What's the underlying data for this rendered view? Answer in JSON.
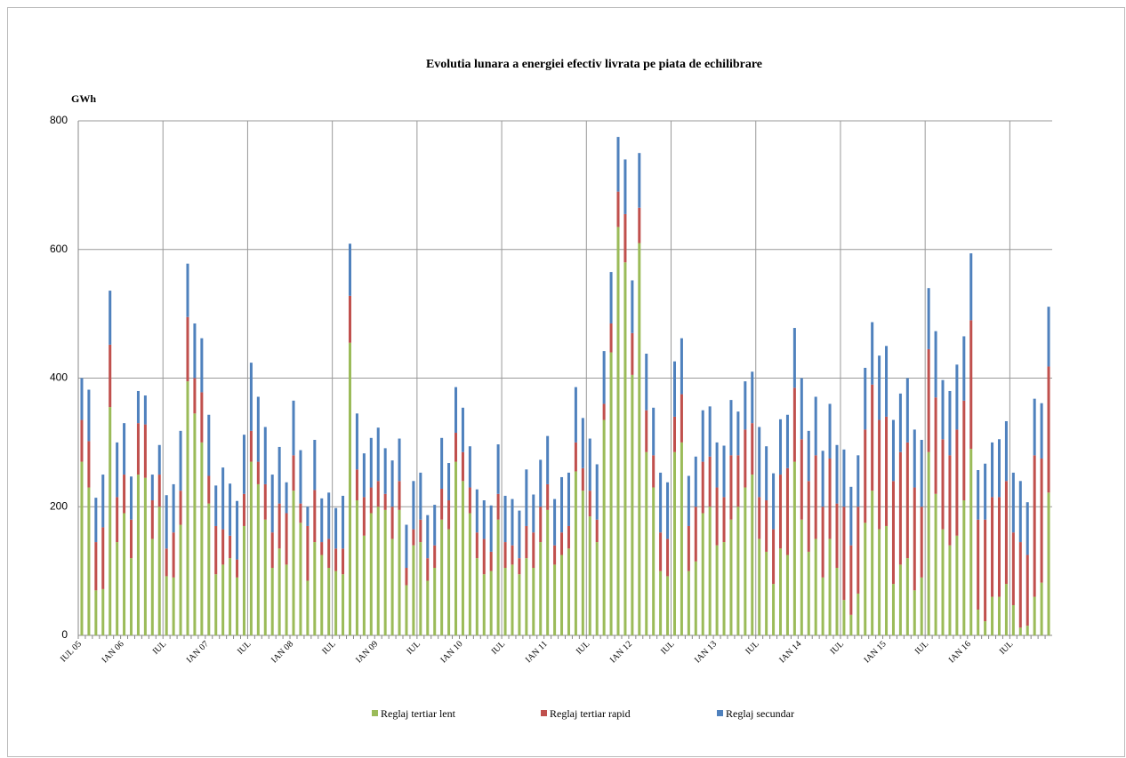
{
  "chart_data": {
    "type": "stacked_bar",
    "title": "Evolutia  lunara  a energiei efectiv livrata pe piata de echilibrare",
    "y_label": "GWh",
    "categories": [
      "IUL 05",
      null,
      null,
      null,
      null,
      null,
      "IAN 06",
      null,
      null,
      null,
      null,
      null,
      "IUL",
      null,
      null,
      null,
      null,
      null,
      "IAN 07",
      null,
      null,
      null,
      null,
      null,
      "IUL",
      null,
      null,
      null,
      null,
      null,
      "IAN 08",
      null,
      null,
      null,
      null,
      null,
      "IUL",
      null,
      null,
      null,
      null,
      null,
      "IAN 09",
      null,
      null,
      null,
      null,
      null,
      "IUL",
      null,
      null,
      null,
      null,
      null,
      "IAN 10",
      null,
      null,
      null,
      null,
      null,
      "IUL",
      null,
      null,
      null,
      null,
      null,
      "IAN 11",
      null,
      null,
      null,
      null,
      null,
      "IUL",
      null,
      null,
      null,
      null,
      null,
      "IAN 12",
      null,
      null,
      null,
      null,
      null,
      "IUL",
      null,
      null,
      null,
      null,
      null,
      "IAN 13",
      null,
      null,
      null,
      null,
      null,
      "IUL",
      null,
      null,
      null,
      null,
      null,
      "IAN 14",
      null,
      null,
      null,
      null,
      null,
      "IUL",
      null,
      null,
      null,
      null,
      null,
      "IAN 15",
      null,
      null,
      null,
      null,
      null,
      "IUL",
      null,
      null,
      null,
      null,
      null,
      "IAN 16",
      null,
      null,
      null,
      null,
      null,
      "IUL",
      null,
      null,
      null,
      null,
      null
    ],
    "series": [
      {
        "name": "Reglaj tertiar lent",
        "color": "#9bbb59",
        "values": [
          270,
          230,
          70,
          72,
          355,
          145,
          190,
          120,
          250,
          245,
          150,
          200,
          92,
          90,
          172,
          395,
          345,
          300,
          205,
          95,
          110,
          120,
          90,
          170,
          270,
          235,
          180,
          105,
          135,
          110,
          225,
          175,
          85,
          145,
          125,
          105,
          100,
          95,
          455,
          210,
          155,
          190,
          200,
          195,
          150,
          195,
          78,
          140,
          145,
          85,
          105,
          180,
          165,
          270,
          240,
          190,
          120,
          95,
          100,
          180,
          105,
          110,
          95,
          120,
          105,
          145,
          195,
          110,
          125,
          135,
          255,
          225,
          185,
          145,
          335,
          440,
          635,
          580,
          405,
          610,
          285,
          230,
          100,
          92,
          285,
          300,
          100,
          115,
          190,
          200,
          140,
          145,
          180,
          200,
          230,
          250,
          150,
          130,
          80,
          135,
          125,
          270,
          180,
          130,
          150,
          90,
          150,
          105,
          55,
          32,
          65,
          175,
          225,
          165,
          170,
          80,
          110,
          120,
          70,
          90,
          285,
          220,
          165,
          140,
          155,
          210,
          290,
          40,
          22,
          60,
          60,
          80,
          47,
          12,
          15,
          60,
          82,
          222
        ]
      },
      {
        "name": "Reglaj tertiar rapid",
        "color": "#c0504d",
        "values": [
          65,
          72,
          75,
          96,
          97,
          70,
          60,
          60,
          80,
          83,
          60,
          50,
          43,
          70,
          53,
          100,
          55,
          78,
          43,
          75,
          55,
          35,
          28,
          50,
          48,
          35,
          55,
          55,
          70,
          80,
          55,
          30,
          85,
          81,
          20,
          45,
          35,
          40,
          73,
          48,
          60,
          40,
          40,
          25,
          50,
          45,
          27,
          25,
          35,
          35,
          35,
          48,
          45,
          45,
          45,
          40,
          40,
          55,
          30,
          40,
          40,
          30,
          25,
          50,
          55,
          55,
          40,
          30,
          35,
          35,
          45,
          35,
          40,
          35,
          25,
          45,
          55,
          75,
          65,
          55,
          65,
          50,
          60,
          58,
          55,
          75,
          70,
          85,
          80,
          78,
          90,
          70,
          100,
          80,
          90,
          80,
          65,
          80,
          85,
          115,
          135,
          115,
          125,
          110,
          130,
          110,
          125,
          100,
          145,
          108,
          135,
          145,
          165,
          170,
          170,
          160,
          175,
          180,
          160,
          110,
          160,
          150,
          140,
          140,
          165,
          155,
          200,
          140,
          158,
          155,
          155,
          160,
          113,
          133,
          110,
          220,
          193,
          196
        ]
      },
      {
        "name": "Reglaj secundar",
        "color": "#4f81bd",
        "values": [
          65,
          80,
          69,
          82,
          84,
          85,
          80,
          67,
          50,
          45,
          40,
          46,
          83,
          75,
          93,
          83,
          85,
          84,
          95,
          63,
          96,
          81,
          91,
          92,
          106,
          101,
          89,
          90,
          88,
          48,
          85,
          83,
          30,
          78,
          68,
          72,
          63,
          82,
          81,
          87,
          68,
          77,
          83,
          71,
          72,
          66,
          67,
          75,
          73,
          67,
          63,
          79,
          58,
          71,
          69,
          64,
          67,
          60,
          72,
          77,
          72,
          72,
          74,
          88,
          59,
          73,
          75,
          72,
          86,
          83,
          86,
          78,
          81,
          86,
          82,
          80,
          85,
          85,
          82,
          85,
          88,
          74,
          93,
          88,
          86,
          87,
          78,
          78,
          80,
          78,
          70,
          80,
          86,
          68,
          75,
          80,
          109,
          84,
          87,
          86,
          83,
          93,
          95,
          78,
          91,
          87,
          85,
          91,
          89,
          91,
          80,
          96,
          97,
          100,
          110,
          95,
          91,
          100,
          90,
          104,
          95,
          103,
          92,
          100,
          101,
          100,
          104,
          77,
          87,
          85,
          90,
          93,
          93,
          95,
          82,
          88,
          86,
          93
        ]
      }
    ],
    "ylim": [
      0,
      800
    ],
    "yticks": [
      0,
      200,
      400,
      600,
      800
    ],
    "grid": true,
    "legend": "bottom"
  }
}
